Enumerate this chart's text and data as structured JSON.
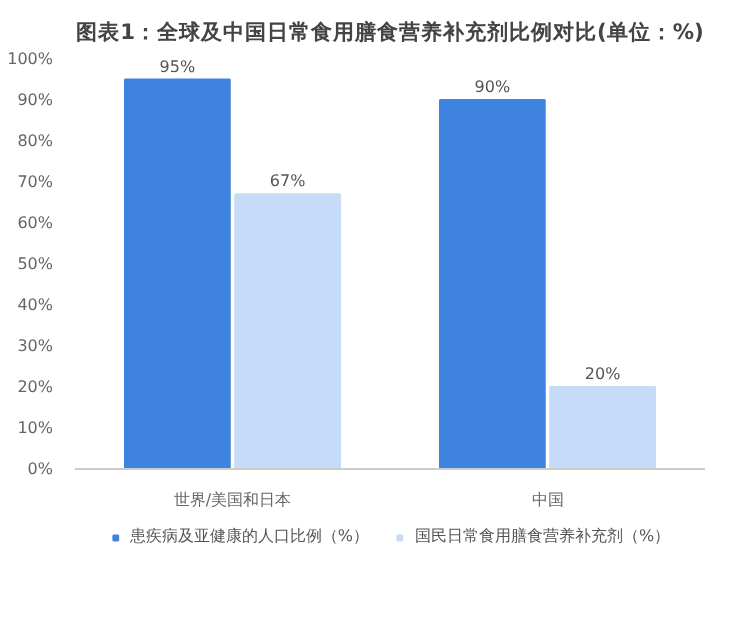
{
  "chart_data": {
    "type": "bar",
    "title": "图表1：全球及中国日常食用膳食营养补充剂比例对比(单位：%)",
    "categories": [
      "世界/美国和日本",
      "中国"
    ],
    "series": [
      {
        "name": "患疾病及亚健康的人口比例（%）",
        "color": "#3f83e0",
        "values": [
          95,
          90
        ],
        "value_labels": [
          "95%",
          "90%"
        ]
      },
      {
        "name": "国民日常食用膳食营养补充剂（%）",
        "color": "#c5dbf7",
        "values": [
          67,
          20
        ],
        "value_labels": [
          "67%",
          "20%"
        ]
      }
    ],
    "ylim": [
      0,
      100
    ],
    "yticks": [
      {
        "value": 0,
        "label": "0%"
      },
      {
        "value": 10,
        "label": "10%"
      },
      {
        "value": 20,
        "label": "20%"
      },
      {
        "value": 30,
        "label": "30%"
      },
      {
        "value": 40,
        "label": "40%"
      },
      {
        "value": 50,
        "label": "50%"
      },
      {
        "value": 60,
        "label": "60%"
      },
      {
        "value": 70,
        "label": "70%"
      },
      {
        "value": 80,
        "label": "80%"
      },
      {
        "value": 90,
        "label": "90%"
      },
      {
        "value": 100,
        "label": "100%"
      }
    ],
    "grid": false,
    "legend": "bottom"
  }
}
